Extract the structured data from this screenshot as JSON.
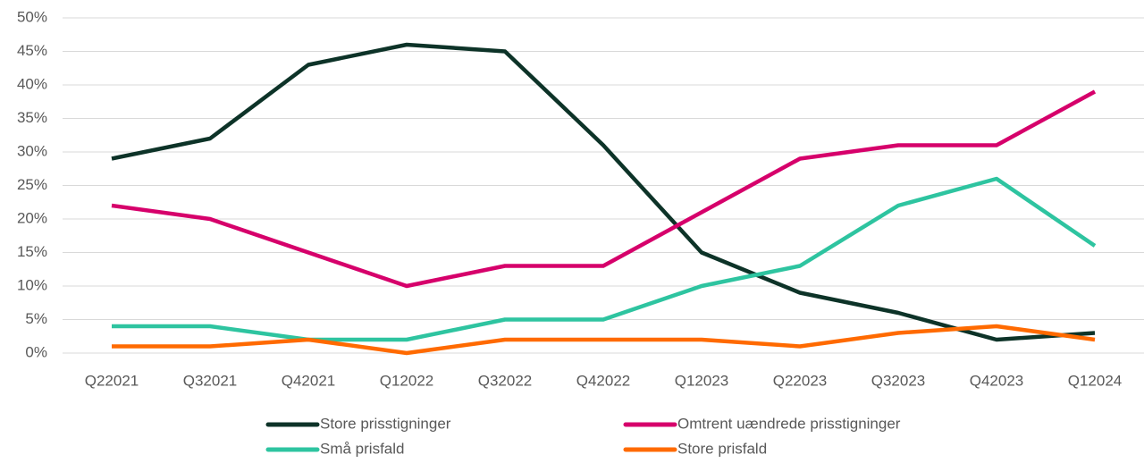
{
  "chart_data": {
    "type": "line",
    "categories": [
      "Q22021",
      "Q32021",
      "Q42021",
      "Q12022",
      "Q32022",
      "Q42022",
      "Q12023",
      "Q22023",
      "Q32023",
      "Q42023",
      "Q12024"
    ],
    "series": [
      {
        "name": "Store prisstigninger",
        "color": "#0d3328",
        "values": [
          29,
          32,
          43,
          46,
          45,
          31,
          15,
          9,
          6,
          2,
          3
        ]
      },
      {
        "name": "Omtrent uændrede prisstigninger",
        "color": "#d6006b",
        "values": [
          22,
          20,
          15,
          10,
          13,
          13,
          21,
          29,
          31,
          31,
          39
        ]
      },
      {
        "name": "Små prisfald",
        "color": "#2ec4a0",
        "values": [
          4,
          4,
          2,
          2,
          5,
          5,
          10,
          13,
          22,
          26,
          16
        ]
      },
      {
        "name": "Store prisfald",
        "color": "#ff6a00",
        "values": [
          1,
          1,
          2,
          0,
          2,
          2,
          2,
          1,
          3,
          4,
          2
        ]
      }
    ],
    "ylim": [
      0,
      50
    ],
    "yticks": [
      {
        "value": 0,
        "label": "0%"
      },
      {
        "value": 5,
        "label": "5%"
      },
      {
        "value": 10,
        "label": "10%"
      },
      {
        "value": 15,
        "label": "15%"
      },
      {
        "value": 20,
        "label": "20%"
      },
      {
        "value": 25,
        "label": "25%"
      },
      {
        "value": 30,
        "label": "30%"
      },
      {
        "value": 35,
        "label": "35%"
      },
      {
        "value": 40,
        "label": "40%"
      },
      {
        "value": 45,
        "label": "45%"
      },
      {
        "value": 50,
        "label": "50%"
      }
    ],
    "grid": true,
    "legend": "bottom"
  }
}
